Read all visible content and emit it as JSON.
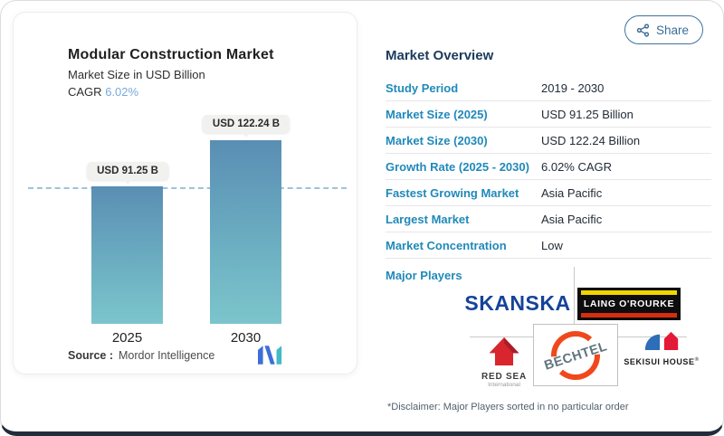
{
  "chart_card": {
    "title": "Modular Construction Market",
    "subtitle": "Market Size in USD Billion",
    "cagr_label": "CAGR",
    "cagr_value": "6.02%",
    "source_label": "Source :",
    "source_name": "Mordor Intelligence"
  },
  "chart_data": {
    "type": "bar",
    "title": "Modular Construction Market",
    "ylabel": "Market Size in USD Billion",
    "categories": [
      "2025",
      "2030"
    ],
    "values": [
      91.25,
      122.24
    ],
    "bar_labels": [
      "USD 91.25 B",
      "USD 122.24 B"
    ],
    "cagr": "6.02%",
    "reference_line_value": 91.25,
    "bar_color_top": "#5a8eb4",
    "bar_color_bottom": "#7cc5cc",
    "grid": false,
    "legend": false
  },
  "header": {
    "share_label": "Share"
  },
  "overview": {
    "heading": "Market Overview",
    "rows": [
      {
        "label": "Study Period",
        "value": "2019 - 2030"
      },
      {
        "label": "Market Size (2025)",
        "value": "USD 91.25 Billion"
      },
      {
        "label": "Market Size (2030)",
        "value": "USD 122.24 Billion"
      },
      {
        "label": "Growth Rate (2025 - 2030)",
        "value": "6.02% CAGR"
      },
      {
        "label": "Fastest Growing Market",
        "value": "Asia Pacific"
      },
      {
        "label": "Largest Market",
        "value": "Asia Pacific"
      },
      {
        "label": "Market Concentration",
        "value": "Low"
      }
    ],
    "major_players_label": "Major Players",
    "major_players": [
      "Skanska",
      "Laing O'Rourke",
      "Red Sea International",
      "Bechtel",
      "Sekisui House"
    ],
    "disclaimer": "*Disclaimer: Major Players sorted in no particular order"
  },
  "players": {
    "skanska": "SKANSKA",
    "laing_orourke": "LAING O'ROURKE",
    "red_sea_name": "RED SEA",
    "red_sea_sub": "International",
    "bechtel": "BECHTEL",
    "sekisui_house": "SEKISUI HOUSE",
    "sekisui_reg": "®"
  },
  "colors": {
    "accent_blue": "#2089ba",
    "navy": "#1c3a5c",
    "cagr_blue": "#79a9d9",
    "share_blue": "#3b6d96",
    "bar_top": "#5a8eb4",
    "bar_bottom": "#7cc5cc"
  }
}
